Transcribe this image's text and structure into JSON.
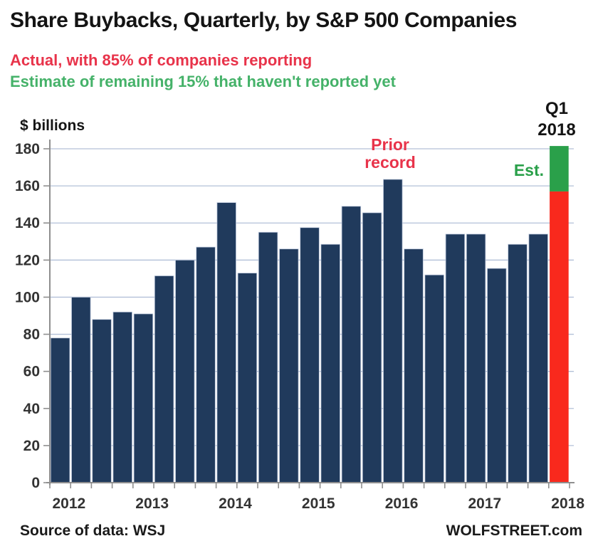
{
  "page": {
    "title": "Share Buybacks, Quarterly, by S&P 500 Companies",
    "subtitle_actual": "Actual, with 85% of companies reporting",
    "subtitle_estimate": "Estimate of remaining 15% that haven't reported yet",
    "source_label": "Source of data: WSJ",
    "brand": "WOLFSTREET.com"
  },
  "annotations": {
    "prior_record_line1": "Prior",
    "prior_record_line2": "record",
    "q1_line1": "Q1",
    "q1_line2": "2018",
    "est_label": "Est."
  },
  "chart_data": {
    "type": "bar",
    "title": "Share Buybacks, Quarterly, by S&P 500 Companies",
    "xlabel": "",
    "ylabel": "$ billions",
    "ylim": [
      0,
      180
    ],
    "ytick_step": 20,
    "grid": true,
    "legend_position": "none",
    "categories": [
      "2012 Q1",
      "2012 Q2",
      "2012 Q3",
      "2012 Q4",
      "2013 Q1",
      "2013 Q2",
      "2013 Q3",
      "2013 Q4",
      "2014 Q1",
      "2014 Q2",
      "2014 Q3",
      "2014 Q4",
      "2015 Q1",
      "2015 Q2",
      "2015 Q3",
      "2015 Q4",
      "2016 Q1",
      "2016 Q2",
      "2016 Q3",
      "2016 Q4",
      "2017 Q1",
      "2017 Q2",
      "2017 Q3",
      "2017 Q4",
      "2018 Q1"
    ],
    "values": [
      78,
      100,
      88,
      92,
      91,
      111.5,
      120,
      127,
      151,
      113,
      135,
      126,
      137.5,
      128.5,
      149,
      145.5,
      163.5,
      126,
      112,
      134,
      134,
      115.5,
      128.5,
      134,
      157
    ],
    "q1_2018": {
      "actual_reported": 157,
      "estimated_remaining": 24.5,
      "estimated_total": 181.5
    },
    "prior_record": {
      "category": "2016 Q1",
      "value": 163.5
    },
    "year_labels": [
      "2012",
      "2013",
      "2014",
      "2015",
      "2016",
      "2017",
      "2018"
    ],
    "colors": {
      "bar_actual": "#203a5c",
      "bar_q1_reported": "#f9291d",
      "bar_q1_estimate": "#2aa04a",
      "bar_outline": "#bcc7db",
      "gridline": "#b3c0d8",
      "axis": "#8f8f8f",
      "tick_text": "#333333",
      "subtitle_red": "#e8334a",
      "subtitle_green": "#45b269"
    }
  }
}
